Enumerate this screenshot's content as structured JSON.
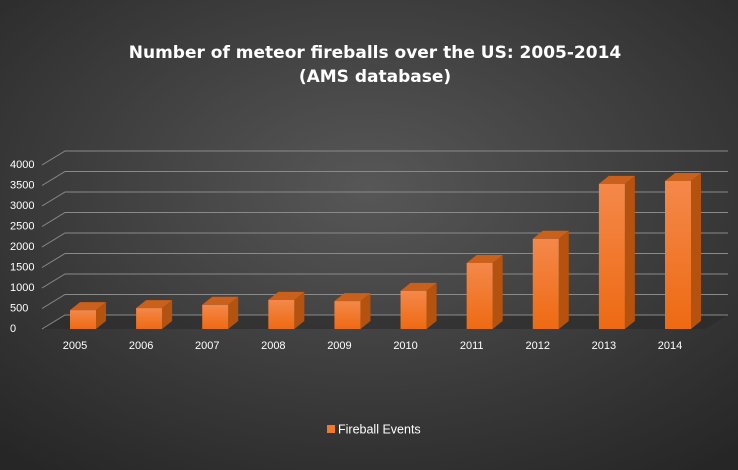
{
  "chart_data": {
    "type": "bar3d",
    "title": [
      "Number of meteor fireballs over the US: 2005-2014",
      "(AMS database)"
    ],
    "categories": [
      "2005",
      "2006",
      "2007",
      "2008",
      "2009",
      "2010",
      "2011",
      "2012",
      "2013",
      "2014"
    ],
    "series": [
      {
        "name": "Fireball Events",
        "color": "#f07a2a",
        "values": [
          460,
          510,
          590,
          710,
          680,
          930,
          1610,
          2200,
          3540,
          3610
        ]
      }
    ],
    "ylim": [
      0,
      4000
    ],
    "yticks": [
      0,
      500,
      1000,
      1500,
      2000,
      2500,
      3000,
      3500,
      4000
    ],
    "grid": true,
    "legend": "bottom"
  }
}
